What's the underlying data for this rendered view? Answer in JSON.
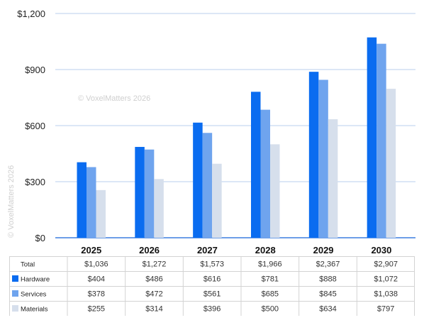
{
  "watermark": {
    "main": "© VoxelMatters 2026",
    "side": "© VoxelMatters 2026"
  },
  "colors": {
    "Hardware": "#0a6cf0",
    "Services": "#6fa4ee",
    "Materials": "#d6dfec",
    "grid": "#b9cfee",
    "axis": "#3d7fe0"
  },
  "chart_data": {
    "type": "bar",
    "categories": [
      "2025",
      "2026",
      "2027",
      "2028",
      "2029",
      "2030"
    ],
    "series": [
      {
        "name": "Hardware",
        "values": [
          404,
          486,
          616,
          781,
          888,
          1072
        ]
      },
      {
        "name": "Services",
        "values": [
          378,
          472,
          561,
          685,
          845,
          1038
        ]
      },
      {
        "name": "Materials",
        "values": [
          255,
          314,
          396,
          500,
          634,
          797
        ]
      }
    ],
    "ylim": [
      0,
      1200
    ],
    "yticks": [
      0,
      300,
      600,
      900,
      1200
    ],
    "ytick_labels": [
      "$0",
      "$300",
      "$600",
      "$900",
      "$1,200"
    ],
    "grid": true,
    "title": "",
    "xlabel": "",
    "ylabel": ""
  },
  "table": {
    "total_label": "Total",
    "totals": [
      "$1,036",
      "$1,272",
      "$1,573",
      "$1,966",
      "$2,367",
      "$2,907"
    ],
    "rows": [
      {
        "label": "Hardware",
        "cells": [
          "$404",
          "$486",
          "$616",
          "$781",
          "$888",
          "$1,072"
        ]
      },
      {
        "label": "Services",
        "cells": [
          "$378",
          "$472",
          "$561",
          "$685",
          "$845",
          "$1,038"
        ]
      },
      {
        "label": "Materials",
        "cells": [
          "$255",
          "$314",
          "$396",
          "$500",
          "$634",
          "$797"
        ]
      }
    ]
  }
}
